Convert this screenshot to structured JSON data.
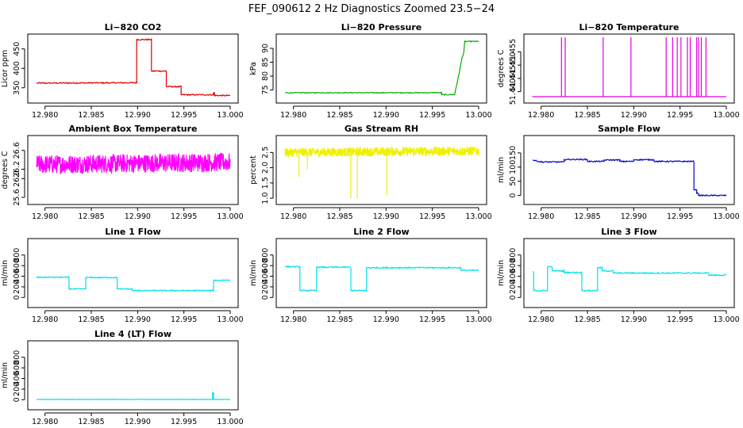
{
  "figure": {
    "title": "FEF_090612  2 Hz Diagnostics Zoomed 23.5−24",
    "background": "#ffffff"
  },
  "chart_data": [
    {
      "type": "line",
      "title": "Li−820 CO2",
      "ylabel": "Licor ppm",
      "xlim": [
        12.979,
        13.0
      ],
      "ylim": [
        323,
        480
      ],
      "xticks": [
        12.98,
        12.985,
        12.99,
        12.995,
        13.0
      ],
      "xtick_labels": [
        "12.980",
        "12.985",
        "12.990",
        "12.995",
        "13.000"
      ],
      "yticks": [
        350,
        400,
        450
      ],
      "ytick_labels": [
        "350",
        "400",
        "450"
      ],
      "color": "#dd0000",
      "style": "step",
      "noise": 1.5,
      "series": [
        {
          "x": [
            12.9791,
            12.9899,
            12.9899,
            12.9915,
            12.9915,
            12.9931,
            12.9931,
            12.9947,
            12.9947,
            12.9982,
            12.9982,
            12.9983,
            12.9983,
            13.0
          ],
          "y": [
            362,
            363,
            474,
            474,
            393,
            393,
            353,
            353,
            332,
            332,
            337,
            337,
            330,
            330
          ]
        }
      ]
    },
    {
      "type": "line",
      "title": "Li−820 Pressure",
      "ylabel": "kPa",
      "xlim": [
        12.979,
        13.0
      ],
      "ylim": [
        72,
        94
      ],
      "xticks": [
        12.98,
        12.985,
        12.99,
        12.995,
        13.0
      ],
      "xtick_labels": [
        "12.980",
        "12.985",
        "12.990",
        "12.995",
        "13.000"
      ],
      "yticks": [
        75,
        80,
        85,
        90
      ],
      "ytick_labels": [
        "75",
        "80",
        "85",
        "90"
      ],
      "color": "#00aa00",
      "style": "step",
      "noise": 0.15,
      "series": [
        {
          "x": [
            12.9791,
            12.996,
            12.996,
            12.9974,
            12.9976,
            12.9978,
            12.998,
            12.9982,
            12.9984,
            12.9985,
            13.0
          ],
          "y": [
            74.0,
            74.0,
            73.3,
            73.3,
            76.5,
            79.5,
            83.0,
            86.5,
            88.5,
            92.5,
            92.5
          ]
        }
      ]
    },
    {
      "type": "line",
      "title": "Li−820 Temperature",
      "ylabel": "degrees C",
      "xlim": [
        12.979,
        13.0
      ],
      "ylim": [
        51.4375,
        51.4605
      ],
      "xticks": [
        12.98,
        12.985,
        12.99,
        12.995,
        13.0
      ],
      "xtick_labels": [
        "12.980",
        "12.985",
        "12.990",
        "12.995",
        "13.000"
      ],
      "yticks": [
        51.44,
        51.445,
        51.45,
        51.455
      ],
      "ytick_labels": [
        "51.440",
        "51.445",
        "51.450",
        "51.455"
      ],
      "color": "#e000e0",
      "style": "spikes",
      "baseline": 51.4381,
      "spikes_x": [
        12.9822,
        12.9826,
        12.9867,
        12.9897,
        12.9935,
        12.9942,
        12.9947,
        12.9951,
        12.9958,
        12.9961,
        12.9968,
        12.997,
        12.9973,
        12.9978
      ],
      "spikes_y": [
        51.4605,
        51.4605,
        51.4605,
        51.4605,
        51.4605,
        51.4605,
        51.4605,
        51.4605,
        51.4605,
        51.4605,
        51.4605,
        51.4605,
        51.4605,
        51.4605
      ]
    },
    {
      "type": "line",
      "title": "Ambient Box Temperature",
      "ylabel": "degrees C",
      "xlim": [
        12.979,
        13.0
      ],
      "ylim": [
        25.55,
        26.85
      ],
      "xticks": [
        12.98,
        12.985,
        12.99,
        12.995,
        13.0
      ],
      "xtick_labels": [
        "12.980",
        "12.985",
        "12.990",
        "12.995",
        "13.000"
      ],
      "yticks": [
        25.6,
        26.0,
        26.2,
        26.6
      ],
      "ytick_labels": [
        "25.6",
        "26.0",
        "26.2",
        "26.6"
      ],
      "color": "#ff00ff",
      "style": "noise",
      "mean": 26.3,
      "amplitude": 0.2,
      "series": [
        {
          "x": [
            12.9791,
            13.0
          ],
          "y": [
            26.3,
            26.35
          ]
        }
      ]
    },
    {
      "type": "line",
      "title": "Gas Stream RH",
      "ylabel": "percent",
      "xlim": [
        12.979,
        13.0
      ],
      "ylim": [
        0.95,
        2.95
      ],
      "xticks": [
        12.98,
        12.985,
        12.99,
        12.995,
        13.0
      ],
      "xtick_labels": [
        "12.980",
        "12.985",
        "12.990",
        "12.995",
        "13.000"
      ],
      "yticks": [
        1.0,
        1.5,
        2.0,
        2.5
      ],
      "ytick_labels": [
        "1.0",
        "1.5",
        "2.0",
        "2.5"
      ],
      "color": "#f0f000",
      "style": "noise",
      "mean": 2.5,
      "amplitude": 0.15,
      "spikes_x": [
        12.9806,
        12.9862,
        12.9869,
        12.9901,
        12.9815
      ],
      "spikes_y": [
        1.7,
        1.0,
        1.0,
        1.1,
        1.95
      ],
      "series": [
        {
          "x": [
            12.9791,
            13.0
          ],
          "y": [
            2.5,
            2.55
          ]
        }
      ]
    },
    {
      "type": "line",
      "title": "Sample Flow",
      "ylabel": "ml/min",
      "xlim": [
        12.979,
        13.0
      ],
      "ylim": [
        -15,
        200
      ],
      "xticks": [
        12.98,
        12.985,
        12.99,
        12.995,
        13.0
      ],
      "xtick_labels": [
        "12.980",
        "12.985",
        "12.990",
        "12.995",
        "13.000"
      ],
      "yticks": [
        0,
        50,
        100,
        150
      ],
      "ytick_labels": [
        "0",
        "50",
        "100",
        "150"
      ],
      "color": "#0000cc",
      "style": "step",
      "noise": 2,
      "series": [
        {
          "x": [
            12.9791,
            12.98,
            12.98,
            12.9825,
            12.9825,
            12.985,
            12.985,
            12.9868,
            12.9868,
            12.9885,
            12.9885,
            12.99,
            12.99,
            12.9922,
            12.9922,
            12.9965,
            12.9965,
            12.9968,
            12.9968,
            12.997,
            12.997,
            13.0
          ],
          "y": [
            125,
            118,
            118,
            118,
            127,
            127,
            120,
            120,
            125,
            125,
            120,
            120,
            126,
            126,
            120,
            120,
            20,
            20,
            8,
            8,
            0,
            0
          ]
        }
      ]
    },
    {
      "type": "line",
      "title": "Line 1 Flow",
      "ylabel": "ml/min",
      "xlim": [
        12.979,
        13.0
      ],
      "ylim": [
        -100,
        1050
      ],
      "xticks": [
        12.98,
        12.985,
        12.99,
        12.995,
        13.0
      ],
      "xtick_labels": [
        "12.980",
        "12.985",
        "12.990",
        "12.995",
        "13.000"
      ],
      "yticks": [
        0,
        200,
        400,
        600,
        800
      ],
      "ytick_labels": [
        "0",
        "200",
        "400",
        "600",
        "800"
      ],
      "color": "#00e0ee",
      "style": "step",
      "noise": 10,
      "series": [
        {
          "x": [
            12.9791,
            12.9826,
            12.9826,
            12.9844,
            12.9844,
            12.9878,
            12.9878,
            12.9894,
            12.9894,
            12.9982,
            12.9982,
            13.0
          ],
          "y": [
            380,
            380,
            160,
            160,
            375,
            375,
            160,
            160,
            130,
            130,
            320,
            330
          ]
        }
      ]
    },
    {
      "type": "line",
      "title": "Line 2 Flow",
      "ylabel": "ml/min",
      "xlim": [
        12.979,
        13.0
      ],
      "ylim": [
        -100,
        1050
      ],
      "xticks": [
        12.98,
        12.985,
        12.99,
        12.995,
        13.0
      ],
      "xtick_labels": [
        "12.980",
        "12.985",
        "12.990",
        "12.995",
        "13.000"
      ],
      "yticks": [
        0,
        200,
        400,
        600,
        800
      ],
      "ytick_labels": [
        "0",
        "200",
        "400",
        "600",
        "800"
      ],
      "color": "#00e0ee",
      "style": "step",
      "noise": 12,
      "series": [
        {
          "x": [
            12.9791,
            12.9807,
            12.9807,
            12.9825,
            12.9825,
            12.9862,
            12.9862,
            12.9879,
            12.9879,
            12.9981,
            12.9981,
            13.0
          ],
          "y": [
            580,
            580,
            130,
            130,
            570,
            570,
            130,
            130,
            560,
            560,
            510,
            510
          ]
        }
      ]
    },
    {
      "type": "line",
      "title": "Line 3 Flow",
      "ylabel": "ml/min",
      "xlim": [
        12.979,
        13.0
      ],
      "ylim": [
        -100,
        1050
      ],
      "xticks": [
        12.98,
        12.985,
        12.99,
        12.995,
        13.0
      ],
      "xtick_labels": [
        "12.980",
        "12.985",
        "12.990",
        "12.995",
        "13.000"
      ],
      "yticks": [
        0,
        200,
        400,
        600,
        800
      ],
      "ytick_labels": [
        "0",
        "200",
        "400",
        "600",
        "800"
      ],
      "color": "#00e0ee",
      "style": "step",
      "noise": 12,
      "series": [
        {
          "x": [
            12.9791,
            12.9792,
            12.9792,
            12.9807,
            12.9807,
            12.9812,
            12.9812,
            12.9825,
            12.9825,
            12.9844,
            12.9844,
            12.9861,
            12.9861,
            12.9866,
            12.9866,
            12.9878,
            12.9878,
            12.9981,
            12.9981,
            13.0
          ],
          "y": [
            480,
            480,
            130,
            130,
            580,
            580,
            500,
            500,
            470,
            470,
            130,
            130,
            560,
            560,
            500,
            500,
            460,
            460,
            420,
            420
          ]
        }
      ]
    },
    {
      "type": "line",
      "title": "Line 4 (LT) Flow",
      "ylabel": "ml/min",
      "xlim": [
        12.979,
        13.0
      ],
      "ylim": [
        -100,
        1050
      ],
      "xticks": [
        12.98,
        12.985,
        12.99,
        12.995,
        13.0
      ],
      "xtick_labels": [
        "12.980",
        "12.985",
        "12.990",
        "12.995",
        "13.000"
      ],
      "yticks": [
        0,
        200,
        400,
        600,
        800
      ],
      "ytick_labels": [
        "0",
        "200",
        "400",
        "600",
        "800"
      ],
      "color": "#00e0ee",
      "style": "step",
      "noise": 3,
      "series": [
        {
          "x": [
            12.9791,
            12.9981,
            12.9981,
            12.9982,
            12.9982,
            13.0
          ],
          "y": [
            5,
            5,
            130,
            130,
            5,
            5
          ]
        }
      ]
    }
  ]
}
